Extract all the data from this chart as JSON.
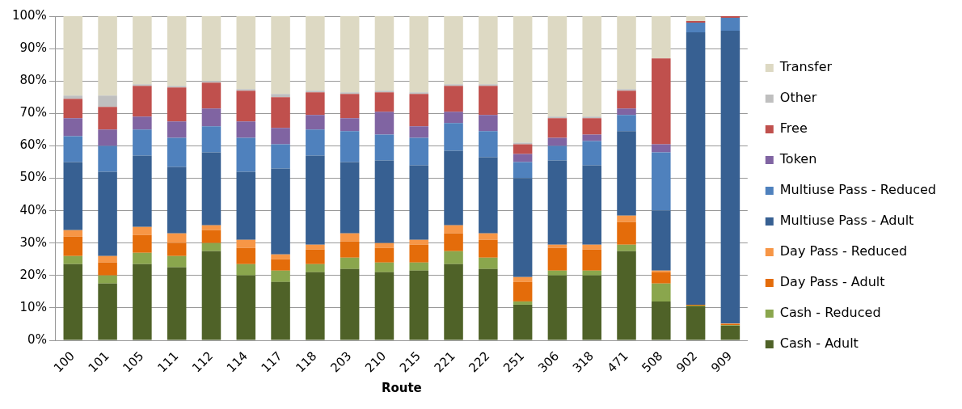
{
  "chart_data": {
    "type": "bar",
    "stacked": true,
    "xlabel": "Route",
    "categories": [
      "100",
      "101",
      "105",
      "111",
      "112",
      "114",
      "117",
      "118",
      "203",
      "210",
      "215",
      "221",
      "222",
      "251",
      "306",
      "318",
      "471",
      "508",
      "902",
      "909"
    ],
    "series": [
      {
        "name": "Cash - Adult",
        "color": "#4f6228",
        "values": [
          23.5,
          17.5,
          23.5,
          22.5,
          27.5,
          20,
          18,
          21,
          22,
          21,
          21.5,
          23.5,
          22,
          11,
          20,
          20,
          27.5,
          12,
          10.5,
          4.5
        ]
      },
      {
        "name": "Cash - Reduced",
        "color": "#8aa64d",
        "values": [
          2.5,
          2.5,
          3.5,
          3.5,
          2.5,
          3.5,
          3.5,
          2.5,
          3.5,
          3,
          2.5,
          4,
          3.5,
          1,
          1.5,
          1.5,
          2,
          5.5,
          0.2,
          0.2
        ]
      },
      {
        "name": "Day Pass - Adult",
        "color": "#e46c0a",
        "values": [
          6,
          4,
          5.5,
          4,
          4,
          5,
          3.5,
          4.5,
          5,
          4.5,
          5.5,
          5.5,
          5.5,
          6,
          7,
          6.5,
          7,
          3.5,
          0.3,
          0.3
        ]
      },
      {
        "name": "Day Pass - Reduced",
        "color": "#f79646",
        "values": [
          2,
          2,
          2.5,
          3,
          1.5,
          2.5,
          1.5,
          1.5,
          2.5,
          1.5,
          1.5,
          2.5,
          2,
          1.5,
          1,
          1.5,
          2,
          0.5,
          0,
          0.2
        ]
      },
      {
        "name": "Multiuse Pass - Adult",
        "color": "#376092",
        "values": [
          21,
          26,
          22,
          20.5,
          22.5,
          21,
          26.5,
          27.5,
          22,
          25.5,
          23,
          23,
          23.5,
          30.5,
          26,
          24.5,
          26,
          18.5,
          84,
          90.3
        ]
      },
      {
        "name": "Multiuse Pass - Reduced",
        "color": "#4f81bd",
        "values": [
          8,
          8,
          8,
          9,
          8,
          10.5,
          7.5,
          8,
          9.5,
          8,
          8.5,
          8.5,
          8,
          5,
          4.5,
          7.5,
          5,
          18,
          3,
          4
        ]
      },
      {
        "name": "Token",
        "color": "#8064a2",
        "values": [
          5.5,
          5,
          4,
          5,
          5.5,
          5,
          5,
          4.5,
          4,
          7,
          3.5,
          3.5,
          5,
          2.5,
          2.5,
          2,
          2,
          2.5,
          0,
          0
        ]
      },
      {
        "name": "Free",
        "color": "#c0504d",
        "values": [
          6,
          7,
          9.5,
          10.5,
          8,
          9.5,
          9.5,
          7,
          7.5,
          6,
          10,
          8,
          9,
          3,
          6,
          5,
          5.5,
          26.5,
          0.5,
          0.5
        ]
      },
      {
        "name": "Other",
        "color": "#bfbfbf",
        "values": [
          1,
          3.5,
          0.5,
          0.5,
          0.5,
          0.5,
          1,
          0.5,
          0.5,
          0.5,
          0.5,
          0.5,
          0.5,
          0.5,
          0.5,
          0.5,
          0.5,
          0,
          0,
          0
        ]
      },
      {
        "name": "Transfer",
        "color": "#ddd9c3",
        "values": [
          24.5,
          24.5,
          21,
          21.5,
          20,
          22.5,
          24,
          23,
          23.5,
          23,
          23.5,
          21,
          21,
          39,
          31,
          31,
          22.5,
          13,
          1.5,
          0
        ]
      }
    ],
    "ylim": [
      0,
      100
    ],
    "yticks": [
      {
        "value": 0,
        "label": "0%"
      },
      {
        "value": 10,
        "label": "10%"
      },
      {
        "value": 20,
        "label": "20%"
      },
      {
        "value": 30,
        "label": "30%"
      },
      {
        "value": 40,
        "label": "40%"
      },
      {
        "value": 50,
        "label": "50%"
      },
      {
        "value": 60,
        "label": "60%"
      },
      {
        "value": 70,
        "label": "70%"
      },
      {
        "value": 80,
        "label": "80%"
      },
      {
        "value": 90,
        "label": "90%"
      },
      {
        "value": 100,
        "label": "100%"
      }
    ],
    "grid": "y",
    "legend": "right"
  }
}
